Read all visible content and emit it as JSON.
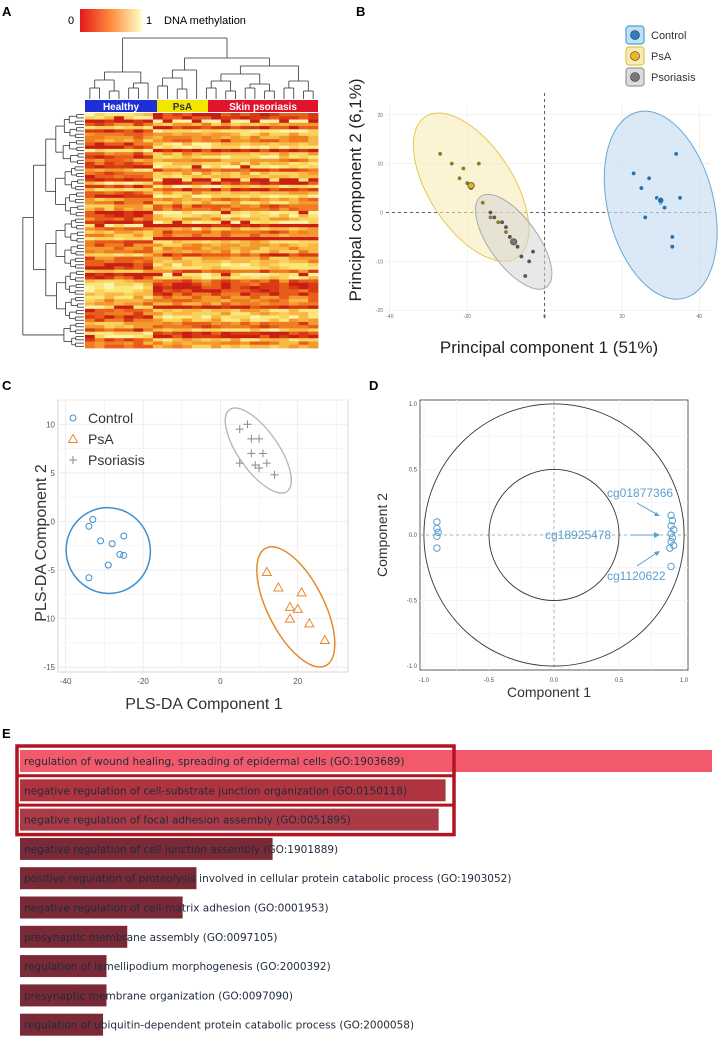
{
  "chart_data": [
    {
      "panel": "A",
      "type": "heatmap",
      "legend_min": "0",
      "legend_max": "1",
      "legend_label": "DNA methylation",
      "groups": [
        {
          "name": "Healthy",
          "color": "#1f2fd6"
        },
        {
          "name": "PsA",
          "color": "#f2e600"
        },
        {
          "name": "Skin psoriasis",
          "color": "#e0142a"
        }
      ]
    },
    {
      "panel": "B",
      "type": "scatter",
      "xlabel": "Principal component 1 (51%)",
      "ylabel": "Principal component 2 (6,1%)",
      "xticks": [
        -40,
        -20,
        0,
        20,
        40
      ],
      "yticks": [
        20,
        10,
        0,
        -10,
        -20
      ],
      "xlim": [
        -41,
        43
      ],
      "ylim": [
        -22,
        22
      ],
      "series": [
        {
          "name": "Control",
          "color": "#2f86c6",
          "points": [
            [
              23,
              8
            ],
            [
              25,
              5
            ],
            [
              27,
              7
            ],
            [
              29,
              3
            ],
            [
              30,
              2
            ],
            [
              31,
              1
            ],
            [
              26,
              -1
            ],
            [
              33,
              -5
            ],
            [
              34,
              12
            ],
            [
              33,
              -7
            ],
            [
              35,
              3
            ]
          ]
        },
        {
          "name": "PsA",
          "color": "#d4a817",
          "points": [
            [
              -27,
              12
            ],
            [
              -24,
              10
            ],
            [
              -22,
              7
            ],
            [
              -21,
              9
            ],
            [
              -19,
              5
            ],
            [
              -17,
              10
            ],
            [
              -16,
              2
            ],
            [
              -14,
              -1
            ],
            [
              -12,
              -2
            ],
            [
              -10,
              -4
            ],
            [
              -9,
              -5
            ],
            [
              -20,
              6
            ]
          ]
        },
        {
          "name": "Psoriasis",
          "color": "#555555",
          "points": [
            [
              -14,
              0
            ],
            [
              -11,
              -2
            ],
            [
              -10,
              -3
            ],
            [
              -9,
              -5
            ],
            [
              -8,
              -6
            ],
            [
              -6,
              -9
            ],
            [
              -4,
              -10
            ],
            [
              -5,
              -13
            ],
            [
              -3,
              -8
            ],
            [
              -7,
              -7
            ],
            [
              -13,
              -1
            ]
          ]
        }
      ]
    },
    {
      "panel": "C",
      "type": "scatter",
      "xlabel": "PLS-DA Component 1",
      "ylabel": "PLS-DA Component 2",
      "xticks": [
        -40,
        -20,
        0,
        20
      ],
      "yticks": [
        10,
        5,
        0,
        -5,
        -10,
        -15
      ],
      "xlim": [
        -42,
        33
      ],
      "ylim": [
        -15.5,
        12.5
      ],
      "series": [
        {
          "name": "Control",
          "color": "#3a8fd1",
          "points": [
            [
              -34,
              -0.5
            ],
            [
              -33,
              0.2
            ],
            [
              -31,
              -2
            ],
            [
              -28,
              -2.3
            ],
            [
              -25,
              -1.5
            ],
            [
              -26,
              -3.4
            ],
            [
              -25,
              -3.5
            ],
            [
              -29,
              -4.5
            ],
            [
              -34,
              -5.8
            ]
          ]
        },
        {
          "name": "PsA",
          "color": "#e58a2c",
          "points": [
            [
              12,
              -5.2
            ],
            [
              15,
              -6.8
            ],
            [
              18,
              -8.8
            ],
            [
              20,
              -9
            ],
            [
              21,
              -7.3
            ],
            [
              18,
              -10
            ],
            [
              23,
              -10.5
            ],
            [
              27,
              -12.2
            ]
          ]
        },
        {
          "name": "Psoriasis",
          "color": "#8a8a8a",
          "points": [
            [
              5,
              9.5
            ],
            [
              7,
              10
            ],
            [
              8,
              8.5
            ],
            [
              10,
              8.5
            ],
            [
              8,
              7
            ],
            [
              11,
              7
            ],
            [
              5,
              6
            ],
            [
              9,
              5.8
            ],
            [
              12,
              6
            ],
            [
              14,
              4.8
            ],
            [
              10,
              5.5
            ]
          ]
        }
      ]
    },
    {
      "panel": "D",
      "type": "scatter",
      "xlabel": "Component 1",
      "ylabel": "Component 2",
      "xticks": [
        -1.0,
        -0.5,
        0.0,
        0.5,
        1.0
      ],
      "yticks": [
        1.0,
        0.5,
        0.0,
        -0.5,
        -1.0
      ],
      "xlim": [
        -1.03,
        1.03
      ],
      "ylim": [
        -1.03,
        1.03
      ],
      "annotations": [
        "cg01877366",
        "cg18925478",
        "cg1120622"
      ],
      "points": [
        [
          -0.9,
          0.1
        ],
        [
          -0.9,
          0.05
        ],
        [
          -0.89,
          0.02
        ],
        [
          -0.9,
          -0.01
        ],
        [
          -0.9,
          -0.1
        ],
        [
          0.9,
          0.15
        ],
        [
          0.91,
          0.11
        ],
        [
          0.9,
          0.07
        ],
        [
          0.92,
          0.04
        ],
        [
          0.9,
          0.01
        ],
        [
          0.91,
          -0.02
        ],
        [
          0.9,
          -0.05
        ],
        [
          0.92,
          -0.08
        ],
        [
          0.89,
          -0.1
        ],
        [
          0.9,
          -0.24
        ]
      ]
    },
    {
      "panel": "E",
      "type": "bar",
      "orientation": "horizontal",
      "categories": [
        "regulation of wound healing, spreading of epidermal cells (GO:1903689)",
        "negative regulation of cell-substrate junction organization (GO:0150118)",
        "negative regulation of focal adhesion assembly (GO:0051895)",
        "negative regulation of cell junction assembly (GO:1901889)",
        "positive regulation of proteolysis involved in cellular protein catabolic process (GO:1903052)",
        "negative regulation of cell-matrix adhesion (GO:0001953)",
        "presynaptic membrane assembly (GO:0097105)",
        "regulation of lamellipodium morphogenesis (GO:2000392)",
        "presynaptic membrane organization (GO:0097090)",
        "regulation of ubiquitin-dependent protein catabolic process (GO:2000058)"
      ],
      "values": [
        100,
        61.5,
        60.5,
        36.5,
        25.5,
        23.5,
        15.5,
        12.5,
        12.5,
        12.0
      ],
      "colors": [
        "#f25a6b",
        "#b0343f",
        "#ab3a47",
        "#7a2a37",
        "#7a2a37",
        "#7a2a37",
        "#7a2a37",
        "#7a2a37",
        "#7a2a37",
        "#7a2a37"
      ],
      "highlighted_count": 3
    }
  ],
  "labels": {
    "panel_a": "A",
    "panel_b": "B",
    "panel_c": "C",
    "panel_d": "D",
    "panel_e": "E"
  }
}
